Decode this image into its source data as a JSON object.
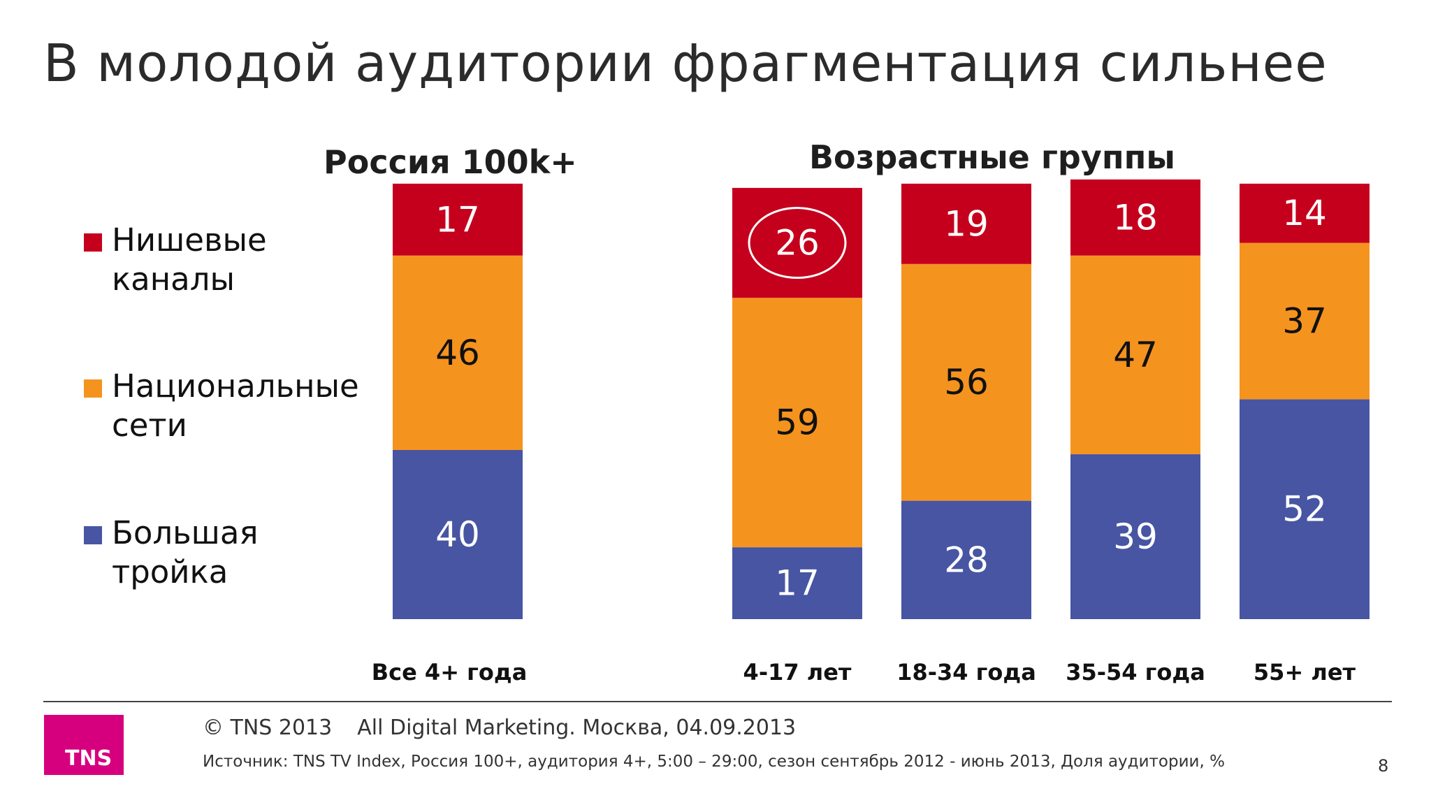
{
  "slide": {
    "title": "В молодой аудитории фрагментация сильнее",
    "group_titles": [
      "Россия  100k+",
      "Возрастные группы"
    ]
  },
  "legend": [
    {
      "label": "Нишевые\nканалы",
      "color": "#c5001d"
    },
    {
      "label": "Национальные\nсети",
      "color": "#f5931f"
    },
    {
      "label": "Большая\nтройка",
      "color": "#4755a3"
    }
  ],
  "chart_data": {
    "type": "bar",
    "stacked": true,
    "categories": [
      "Все 4+ года",
      "4-17 лет",
      "18-34 года",
      "35-54 года",
      "55+ лет"
    ],
    "series": [
      {
        "name": "Большая тройка",
        "color": "#4755a3",
        "values": [
          40,
          17,
          28,
          39,
          52
        ]
      },
      {
        "name": "Национальные сети",
        "color": "#f5931f",
        "values": [
          46,
          59,
          56,
          47,
          37
        ]
      },
      {
        "name": "Нишевые каналы",
        "color": "#c5001d",
        "values": [
          17,
          26,
          19,
          18,
          14
        ]
      }
    ],
    "highlight": {
      "category": "4-17 лет",
      "series": "Нишевые каналы",
      "value": 26
    },
    "ylabel": "",
    "xlabel": "",
    "grid": false,
    "legend_position": "left"
  },
  "footer": {
    "copyright": "© TNS 2013",
    "event": "All Digital Marketing. Москва, 04.09.2013",
    "source": "Источник: TNS TV Index, Россия 100+, аудитория 4+, 5:00 – 29:00, сезон сентябрь 2012 - июнь 2013, Доля аудитории, %",
    "page_number": "8",
    "logo_text": "TNS",
    "logo_color": "#d6007f"
  }
}
